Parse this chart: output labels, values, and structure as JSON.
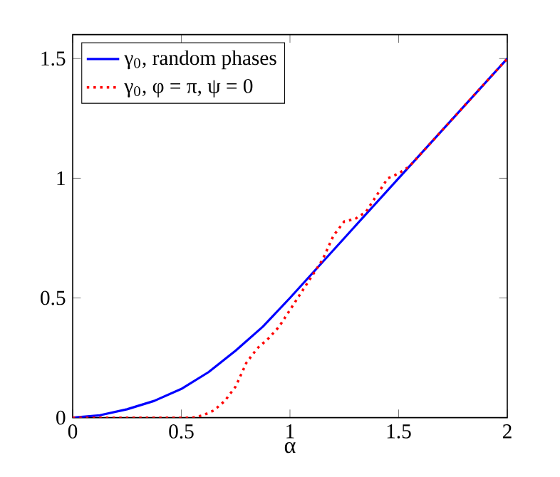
{
  "chart_data": {
    "type": "line",
    "xlabel": "α",
    "xlim": [
      0,
      2
    ],
    "ylim": [
      0,
      1.6
    ],
    "xticks": [
      0,
      0.5,
      1,
      1.5,
      2
    ],
    "yticks": [
      0,
      0.5,
      1,
      1.5
    ],
    "legend": "top left",
    "grid": false,
    "marker": "none",
    "series": [
      {
        "name": "γ$_{0}$, random phases",
        "color": "#0000ff",
        "line_style": "solid",
        "x": [
          0,
          0.125,
          0.25,
          0.375,
          0.5,
          0.625,
          0.75,
          0.875,
          1,
          1.125,
          1.25,
          1.5,
          1.75,
          2
        ],
        "values": [
          0,
          0.01,
          0.035,
          0.07,
          0.12,
          0.19,
          0.28,
          0.38,
          0.5,
          0.625,
          0.75,
          1.0,
          1.25,
          1.5
        ]
      },
      {
        "name": "γ$_{0}$, φ = π, ψ = 0",
        "color": "#ff0000",
        "line_style": "dotted",
        "x": [
          0,
          0.55,
          0.6,
          0.65,
          0.7,
          0.75,
          0.8,
          0.85,
          0.9,
          0.95,
          1.0,
          1.05,
          1.1,
          1.15,
          1.2,
          1.25,
          1.3,
          1.35,
          1.4,
          1.45,
          1.5,
          1.55,
          1.6,
          1.7,
          1.8,
          1.9,
          2
        ],
        "values": [
          0,
          0,
          0.01,
          0.03,
          0.07,
          0.13,
          0.23,
          0.29,
          0.33,
          0.38,
          0.45,
          0.52,
          0.59,
          0.66,
          0.76,
          0.82,
          0.83,
          0.86,
          0.93,
          1.0,
          1.02,
          1.05,
          1.1,
          1.2,
          1.3,
          1.4,
          1.5
        ]
      }
    ]
  }
}
